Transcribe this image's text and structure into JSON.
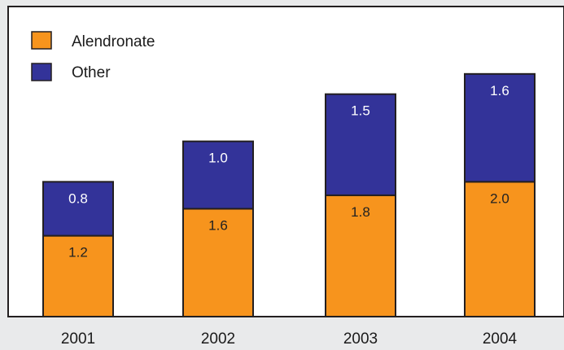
{
  "chart_data": {
    "type": "bar",
    "stacked": true,
    "categories": [
      "2001",
      "2002",
      "2003",
      "2004"
    ],
    "series": [
      {
        "name": "Alendronate",
        "values": [
          1.2,
          1.6,
          1.8,
          2.0
        ],
        "color": "#f7941d",
        "label_color": "#222222",
        "labels": [
          "1.2",
          "1.6",
          "1.8",
          "2.0"
        ]
      },
      {
        "name": "Other",
        "values": [
          0.8,
          1.0,
          1.5,
          1.6
        ],
        "color": "#333399",
        "label_color": "#ffffff",
        "labels": [
          "0.8",
          "1.0",
          "1.5",
          "1.6"
        ]
      }
    ],
    "ylim": [
      0,
      4.6
    ],
    "legend_position": "top-left",
    "grid": false,
    "background": "#ffffff",
    "page_background": "#e9eaeb"
  }
}
